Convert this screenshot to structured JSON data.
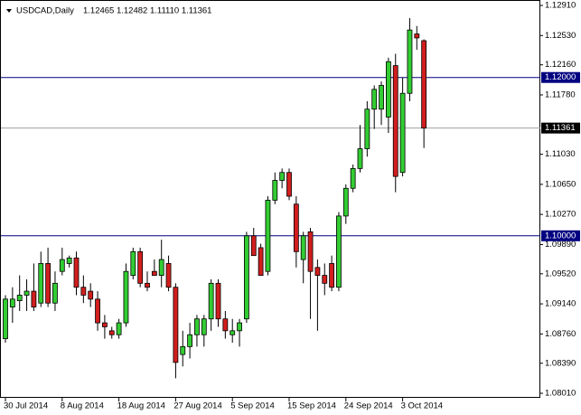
{
  "chart_data": {
    "type": "candlestick",
    "title": "USDCAD,Daily",
    "quote": "1.12465 1.12482 1.11110 1.11361",
    "categories": [
      "30 Jul 2014",
      null,
      null,
      null,
      null,
      null,
      null,
      null,
      "8 Aug 2014",
      null,
      null,
      null,
      null,
      null,
      null,
      null,
      "18 Aug 2014",
      null,
      null,
      null,
      null,
      null,
      null,
      null,
      "27 Aug 2014",
      null,
      null,
      null,
      null,
      null,
      null,
      null,
      "5 Sep 2014",
      null,
      null,
      null,
      null,
      null,
      null,
      null,
      "15 Sep 2014",
      null,
      null,
      null,
      null,
      null,
      null,
      null,
      "24 Sep 2014",
      null,
      null,
      null,
      null,
      null,
      null,
      null,
      "3 Oct 2014",
      null,
      null,
      null
    ],
    "open": [
      1.087,
      1.091,
      1.0918,
      1.0925,
      1.093,
      1.0915,
      1.0965,
      1.0915,
      1.0955,
      1.0965,
      1.0972,
      1.0935,
      1.093,
      1.092,
      1.089,
      1.088,
      1.0875,
      1.089,
      1.095,
      1.098,
      1.094,
      1.0955,
      1.095,
      1.0965,
      1.0935,
      1.085,
      1.086,
      1.0875,
      1.0875,
      1.0895,
      1.094,
      1.0895,
      1.0875,
      1.088,
      1.0895,
      1.1,
      1.0985,
      1.0955,
      1.1045,
      1.107,
      1.108,
      1.104,
      1.097,
      1.1005,
      1.096,
      1.095,
      1.0965,
      1.0935,
      1.1025,
      1.106,
      1.1085,
      1.111,
      1.116,
      1.116,
      1.115,
      1.1215,
      1.108,
      1.118,
      1.1255,
      1.12465
    ],
    "high": [
      1.0925,
      1.0935,
      1.095,
      1.0945,
      1.0965,
      1.098,
      1.0985,
      1.0955,
      1.0985,
      1.0975,
      1.098,
      1.095,
      1.094,
      1.093,
      1.09,
      1.0885,
      1.0895,
      1.0965,
      1.0985,
      1.0985,
      1.0955,
      1.097,
      1.0995,
      1.0975,
      1.094,
      1.088,
      1.089,
      1.09,
      1.09,
      1.0945,
      1.0945,
      1.0905,
      1.0895,
      1.0895,
      1.1005,
      1.101,
      1.099,
      1.105,
      1.108,
      1.1085,
      1.1085,
      1.105,
      1.1005,
      1.101,
      1.097,
      1.0965,
      1.0975,
      1.103,
      1.1065,
      1.109,
      1.114,
      1.117,
      1.119,
      1.1195,
      1.1225,
      1.123,
      1.12,
      1.1275,
      1.1265,
      1.12482
    ],
    "low": [
      1.0865,
      1.089,
      1.0905,
      1.0905,
      1.0905,
      1.091,
      1.091,
      1.0905,
      1.095,
      1.096,
      1.0925,
      1.0915,
      1.091,
      1.088,
      1.087,
      1.087,
      1.087,
      1.0885,
      1.0945,
      1.0935,
      1.093,
      1.095,
      1.0935,
      1.093,
      1.082,
      1.0835,
      1.0845,
      1.086,
      1.086,
      1.088,
      1.0885,
      1.087,
      1.0865,
      1.086,
      1.089,
      1.0975,
      1.095,
      1.095,
      1.104,
      1.106,
      1.1045,
      1.096,
      1.094,
      1.0895,
      1.088,
      1.0925,
      1.093,
      1.093,
      1.1015,
      1.1055,
      1.108,
      1.11,
      1.1135,
      1.114,
      1.113,
      1.1055,
      1.1075,
      1.117,
      1.1235,
      1.1111
    ],
    "close": [
      1.092,
      1.092,
      1.0925,
      1.093,
      1.091,
      1.0965,
      1.0915,
      1.094,
      1.097,
      1.0972,
      1.0935,
      1.0925,
      1.092,
      1.089,
      1.0885,
      1.0875,
      1.089,
      1.0955,
      1.098,
      1.094,
      1.0935,
      1.095,
      1.097,
      1.0935,
      1.084,
      1.086,
      1.0875,
      1.0895,
      1.0895,
      1.094,
      1.0895,
      1.088,
      1.088,
      1.089,
      1.1,
      1.0975,
      1.095,
      1.1045,
      1.107,
      1.108,
      1.105,
      1.098,
      1.1,
      1.0955,
      1.095,
      1.094,
      1.0935,
      1.1025,
      1.106,
      1.1085,
      1.111,
      1.116,
      1.1185,
      1.119,
      1.122,
      1.1075,
      1.118,
      1.126,
      1.125,
      1.11361
    ],
    "up_color": "#32cd32",
    "down_color": "#d21e1e",
    "ylim": [
      1.07953,
      1.12979
    ],
    "yticks": [
      {
        "value": 1.0801,
        "label": "1.08010"
      },
      {
        "value": 1.0839,
        "label": "1.08390"
      },
      {
        "value": 1.0876,
        "label": "1.08760"
      },
      {
        "value": 1.0914,
        "label": "1.09140"
      },
      {
        "value": 1.0952,
        "label": "1.09520"
      },
      {
        "value": 1.0989,
        "label": "1.09890"
      },
      {
        "value": 1.1027,
        "label": "1.10270"
      },
      {
        "value": 1.1065,
        "label": "1.10650"
      },
      {
        "value": 1.1103,
        "label": "1.11030"
      },
      {
        "value": 1.1178,
        "label": "1.11780"
      },
      {
        "value": 1.1216,
        "label": "1.12160"
      },
      {
        "value": 1.1253,
        "label": "1.12530"
      },
      {
        "value": 1.1291,
        "label": "1.12910"
      }
    ],
    "hlines": [
      {
        "value": 1.12,
        "label": "1.12000"
      },
      {
        "value": 1.1,
        "label": "1.10000"
      }
    ],
    "current_price": {
      "value": 1.11361,
      "label": "1.11361"
    }
  }
}
